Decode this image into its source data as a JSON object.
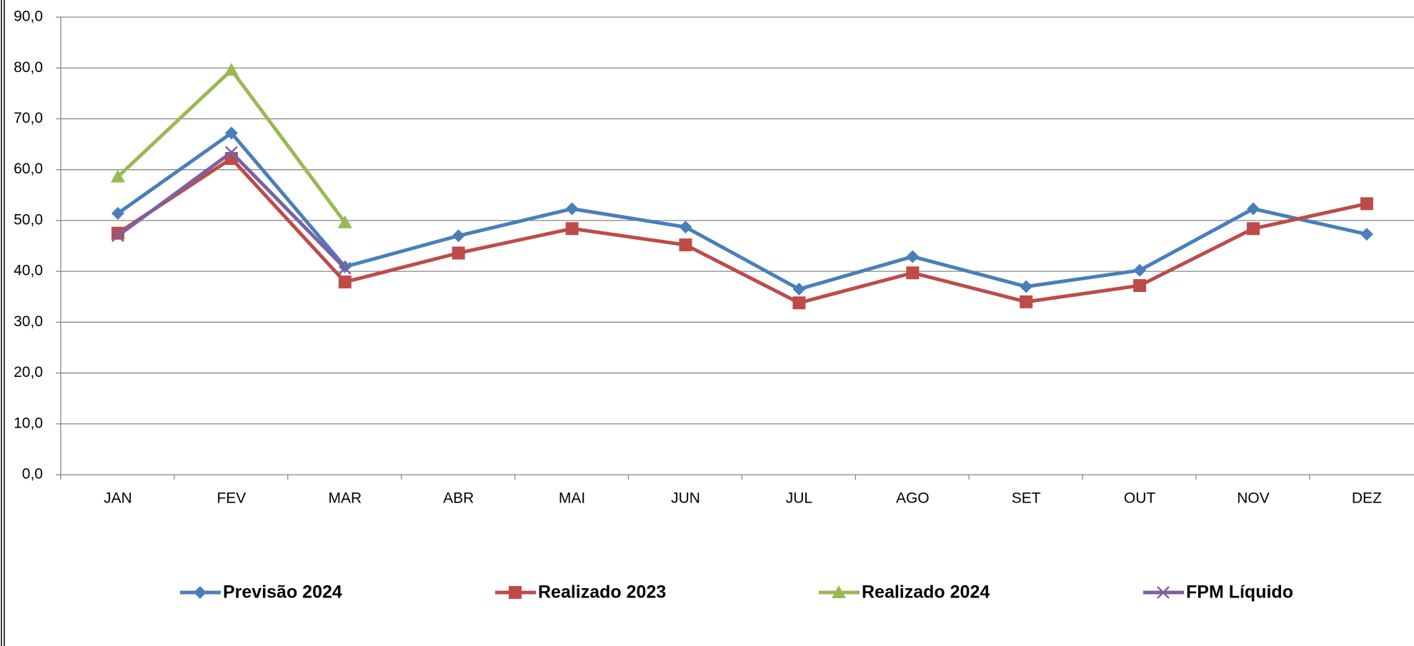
{
  "chart_data": {
    "type": "line",
    "categories": [
      "JAN",
      "FEV",
      "MAR",
      "ABR",
      "MAI",
      "JUN",
      "JUL",
      "AGO",
      "SET",
      "OUT",
      "NOV",
      "DEZ"
    ],
    "series": [
      {
        "name": "Previsão 2024",
        "color": "#4a7ebb",
        "marker": "diamond",
        "values": [
          51.4,
          67.2,
          40.9,
          47.0,
          52.3,
          48.7,
          36.5,
          42.9,
          37.0,
          40.2,
          52.3,
          47.3
        ]
      },
      {
        "name": "Realizado 2023",
        "color": "#be4b48",
        "marker": "square",
        "values": [
          47.5,
          62.2,
          37.9,
          43.6,
          48.4,
          45.2,
          33.8,
          39.7,
          34.0,
          37.2,
          48.4,
          53.3
        ]
      },
      {
        "name": "Realizado 2024",
        "color": "#98b954",
        "marker": "triangle",
        "values": [
          58.6,
          79.6,
          49.6,
          null,
          null,
          null,
          null,
          null,
          null,
          null,
          null,
          null
        ]
      },
      {
        "name": "FPM Líquido",
        "color": "#7d60a0",
        "marker": "x",
        "values": [
          47.0,
          63.4,
          40.6,
          null,
          null,
          null,
          null,
          null,
          null,
          null,
          null,
          null
        ]
      }
    ],
    "ylim": [
      0,
      90
    ],
    "yticks": [
      {
        "value": 0,
        "label": "0,0"
      },
      {
        "value": 10,
        "label": "10,0"
      },
      {
        "value": 20,
        "label": "20,0"
      },
      {
        "value": 30,
        "label": "30,0"
      },
      {
        "value": 40,
        "label": "40,0"
      },
      {
        "value": 50,
        "label": "50,0"
      },
      {
        "value": 60,
        "label": "60,0"
      },
      {
        "value": 70,
        "label": "70,0"
      },
      {
        "value": 80,
        "label": "80,0"
      },
      {
        "value": 90,
        "label": "90,0"
      }
    ],
    "grid": true,
    "legend": "bottom"
  }
}
